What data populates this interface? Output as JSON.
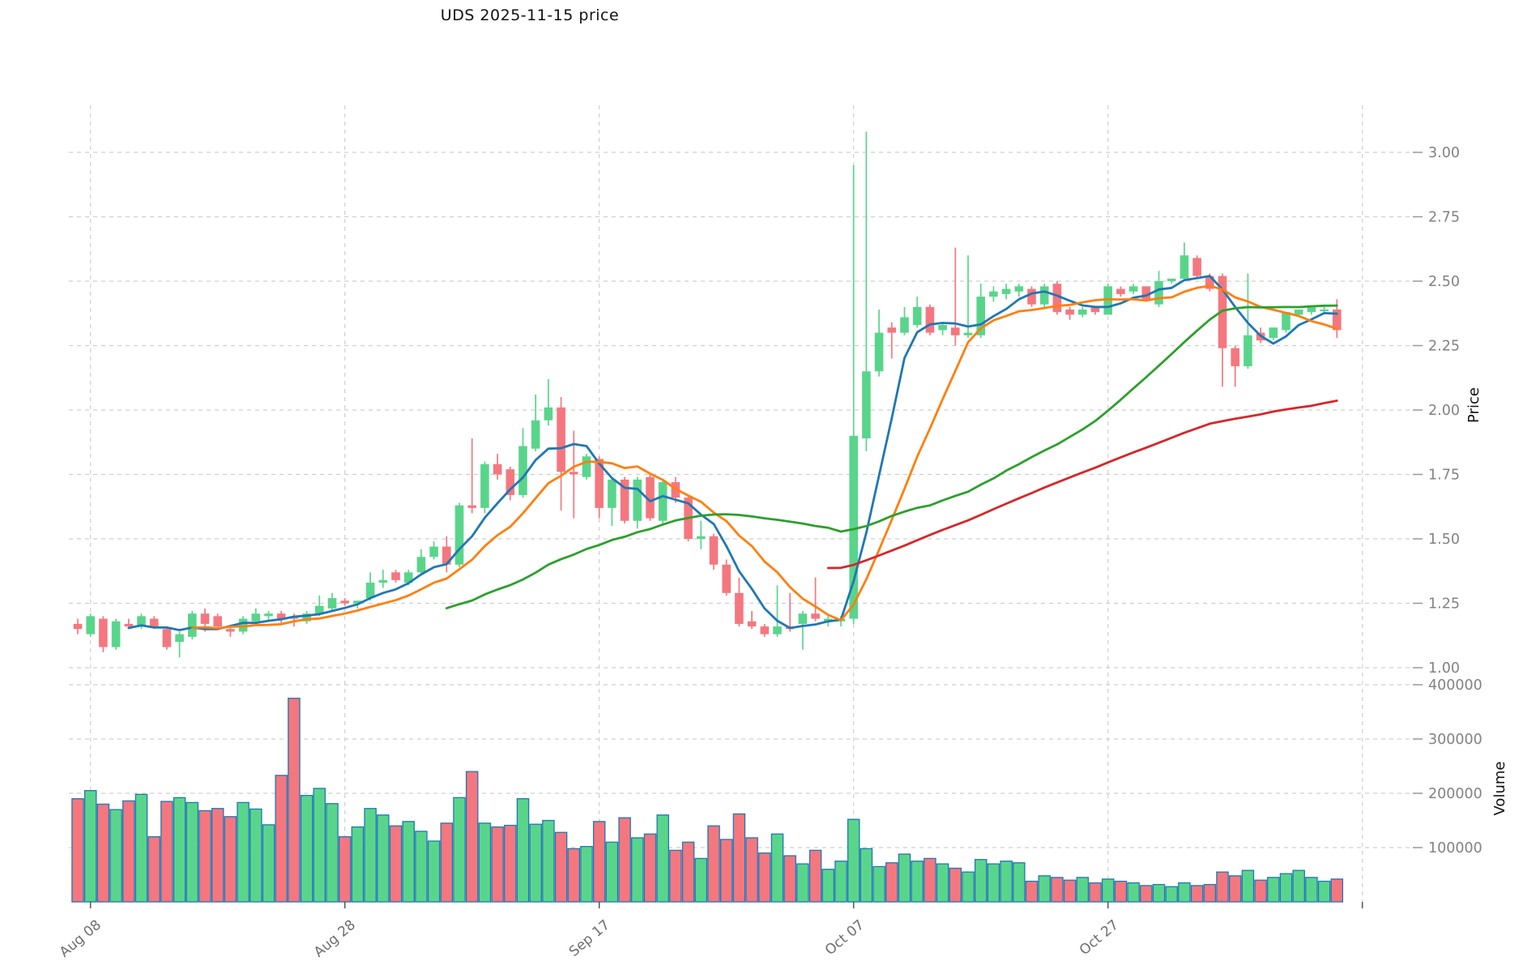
{
  "title": "UDS  2025-11-15  price",
  "colors": {
    "up": "#59D58B",
    "down": "#F4777F",
    "volume_edge": "#1F77B4",
    "ma5": "#1F77B4",
    "ma10": "#FF7F0E",
    "ma30": "#2CA02C",
    "ma60": "#D62728",
    "grid": "#CFCFCF",
    "tick_text": "#828282",
    "xtick_text": "#6E6E6E"
  },
  "chart_data": {
    "type": "candlestick",
    "title": "UDS  2025-11-15  price",
    "legend_position": "none",
    "grid": "dashed",
    "price_axis": {
      "label": "Price",
      "side": "right",
      "tick_labels": [
        "1.00",
        "1.25",
        "1.50",
        "1.75",
        "2.00",
        "2.25",
        "2.50",
        "2.75",
        "3.00"
      ],
      "tick_values": [
        1.0,
        1.25,
        1.5,
        1.75,
        2.0,
        2.25,
        2.5,
        2.75,
        3.0
      ],
      "range": [
        0.97,
        3.21
      ]
    },
    "volume_axis": {
      "label": "Volume",
      "side": "right",
      "tick_labels": [
        "100000",
        "200000",
        "300000",
        "400000"
      ],
      "tick_values": [
        100000,
        200000,
        300000,
        400000
      ],
      "range": [
        0,
        418000
      ]
    },
    "x_axis": {
      "tick_labels": [
        "Aug 08",
        "Aug 28",
        "Sep 17",
        "Oct 07",
        "Oct 27",
        ""
      ],
      "tick_indices": [
        1,
        21,
        41,
        61,
        81,
        101
      ]
    },
    "moving_averages": [
      {
        "name": "SMA5",
        "window": 5,
        "color_key": "ma5"
      },
      {
        "name": "SMA10",
        "window": 10,
        "color_key": "ma10"
      },
      {
        "name": "SMA30",
        "window": 30,
        "color_key": "ma30"
      },
      {
        "name": "SMA60",
        "window": 60,
        "color_key": "ma60"
      }
    ],
    "candles": [
      [
        1.17,
        1.19,
        1.13,
        1.15
      ],
      [
        1.13,
        1.21,
        1.12,
        1.2
      ],
      [
        1.19,
        1.2,
        1.06,
        1.08
      ],
      [
        1.08,
        1.19,
        1.07,
        1.18
      ],
      [
        1.17,
        1.19,
        1.15,
        1.16
      ],
      [
        1.16,
        1.21,
        1.15,
        1.2
      ],
      [
        1.19,
        1.2,
        1.15,
        1.16
      ],
      [
        1.15,
        1.16,
        1.07,
        1.08
      ],
      [
        1.1,
        1.14,
        1.04,
        1.13
      ],
      [
        1.12,
        1.22,
        1.11,
        1.21
      ],
      [
        1.21,
        1.23,
        1.14,
        1.17
      ],
      [
        1.2,
        1.21,
        1.15,
        1.16
      ],
      [
        1.15,
        1.16,
        1.12,
        1.14
      ],
      [
        1.14,
        1.2,
        1.13,
        1.19
      ],
      [
        1.18,
        1.23,
        1.17,
        1.21
      ],
      [
        1.2,
        1.22,
        1.18,
        1.21
      ],
      [
        1.21,
        1.22,
        1.17,
        1.19
      ],
      [
        1.2,
        1.21,
        1.16,
        1.19
      ],
      [
        1.18,
        1.22,
        1.17,
        1.21
      ],
      [
        1.21,
        1.28,
        1.2,
        1.24
      ],
      [
        1.23,
        1.29,
        1.22,
        1.27
      ],
      [
        1.26,
        1.27,
        1.24,
        1.25
      ],
      [
        1.25,
        1.26,
        1.23,
        1.26
      ],
      [
        1.27,
        1.37,
        1.26,
        1.33
      ],
      [
        1.33,
        1.38,
        1.31,
        1.34
      ],
      [
        1.37,
        1.38,
        1.33,
        1.34
      ],
      [
        1.33,
        1.38,
        1.32,
        1.37
      ],
      [
        1.37,
        1.46,
        1.36,
        1.43
      ],
      [
        1.43,
        1.49,
        1.42,
        1.47
      ],
      [
        1.47,
        1.51,
        1.37,
        1.4
      ],
      [
        1.4,
        1.64,
        1.39,
        1.63
      ],
      [
        1.63,
        1.89,
        1.6,
        1.62
      ],
      [
        1.62,
        1.8,
        1.6,
        1.79
      ],
      [
        1.79,
        1.83,
        1.73,
        1.75
      ],
      [
        1.77,
        1.78,
        1.65,
        1.67
      ],
      [
        1.67,
        1.93,
        1.66,
        1.86
      ],
      [
        1.85,
        2.06,
        1.84,
        1.96
      ],
      [
        1.96,
        2.12,
        1.94,
        2.01
      ],
      [
        2.01,
        2.05,
        1.61,
        1.76
      ],
      [
        1.76,
        1.92,
        1.58,
        1.75
      ],
      [
        1.74,
        1.83,
        1.73,
        1.82
      ],
      [
        1.81,
        1.82,
        1.58,
        1.62
      ],
      [
        1.62,
        1.74,
        1.55,
        1.73
      ],
      [
        1.73,
        1.74,
        1.56,
        1.57
      ],
      [
        1.57,
        1.74,
        1.54,
        1.73
      ],
      [
        1.74,
        1.75,
        1.57,
        1.58
      ],
      [
        1.57,
        1.73,
        1.56,
        1.72
      ],
      [
        1.72,
        1.74,
        1.64,
        1.66
      ],
      [
        1.66,
        1.67,
        1.49,
        1.5
      ],
      [
        1.5,
        1.57,
        1.46,
        1.51
      ],
      [
        1.51,
        1.52,
        1.38,
        1.4
      ],
      [
        1.4,
        1.42,
        1.28,
        1.29
      ],
      [
        1.29,
        1.35,
        1.16,
        1.17
      ],
      [
        1.18,
        1.22,
        1.15,
        1.16
      ],
      [
        1.16,
        1.17,
        1.12,
        1.13
      ],
      [
        1.13,
        1.32,
        1.12,
        1.16
      ],
      [
        1.16,
        1.29,
        1.14,
        1.15
      ],
      [
        1.17,
        1.22,
        1.07,
        1.21
      ],
      [
        1.21,
        1.35,
        1.18,
        1.19
      ],
      [
        1.18,
        1.2,
        1.16,
        1.19
      ],
      [
        1.18,
        1.2,
        1.16,
        1.19
      ],
      [
        1.19,
        2.95,
        1.17,
        1.9
      ],
      [
        1.89,
        3.08,
        1.84,
        2.15
      ],
      [
        2.15,
        2.39,
        2.13,
        2.3
      ],
      [
        2.32,
        2.34,
        2.2,
        2.3
      ],
      [
        2.3,
        2.4,
        2.29,
        2.36
      ],
      [
        2.33,
        2.44,
        2.32,
        2.4
      ],
      [
        2.4,
        2.41,
        2.29,
        2.3
      ],
      [
        2.31,
        2.34,
        2.29,
        2.33
      ],
      [
        2.32,
        2.63,
        2.25,
        2.29
      ],
      [
        2.29,
        2.6,
        2.28,
        2.3
      ],
      [
        2.29,
        2.49,
        2.28,
        2.44
      ],
      [
        2.44,
        2.48,
        2.42,
        2.46
      ],
      [
        2.45,
        2.49,
        2.43,
        2.47
      ],
      [
        2.46,
        2.49,
        2.44,
        2.48
      ],
      [
        2.47,
        2.48,
        2.4,
        2.41
      ],
      [
        2.41,
        2.49,
        2.4,
        2.48
      ],
      [
        2.49,
        2.5,
        2.37,
        2.38
      ],
      [
        2.39,
        2.4,
        2.35,
        2.37
      ],
      [
        2.37,
        2.4,
        2.36,
        2.39
      ],
      [
        2.4,
        2.4,
        2.37,
        2.38
      ],
      [
        2.37,
        2.49,
        2.37,
        2.48
      ],
      [
        2.47,
        2.48,
        2.44,
        2.45
      ],
      [
        2.46,
        2.49,
        2.45,
        2.48
      ],
      [
        2.48,
        2.48,
        2.42,
        2.43
      ],
      [
        2.41,
        2.54,
        2.4,
        2.5
      ],
      [
        2.5,
        2.51,
        2.49,
        2.51
      ],
      [
        2.51,
        2.65,
        2.5,
        2.6
      ],
      [
        2.59,
        2.6,
        2.51,
        2.52
      ],
      [
        2.52,
        2.53,
        2.46,
        2.47
      ],
      [
        2.52,
        2.53,
        2.09,
        2.24
      ],
      [
        2.24,
        2.25,
        2.09,
        2.17
      ],
      [
        2.17,
        2.53,
        2.16,
        2.29
      ],
      [
        2.3,
        2.32,
        2.26,
        2.27
      ],
      [
        2.28,
        2.32,
        2.27,
        2.32
      ],
      [
        2.31,
        2.38,
        2.3,
        2.38
      ],
      [
        2.37,
        2.39,
        2.36,
        2.39
      ],
      [
        2.38,
        2.4,
        2.37,
        2.4
      ],
      [
        2.39,
        2.4,
        2.38,
        2.39
      ],
      [
        2.39,
        2.43,
        2.28,
        2.31
      ]
    ],
    "volumes": [
      190000,
      205000,
      180000,
      170000,
      186000,
      198000,
      120000,
      185000,
      192000,
      183000,
      168000,
      172000,
      157000,
      183000,
      171000,
      142000,
      233000,
      375000,
      196000,
      209000,
      181000,
      120000,
      138000,
      172000,
      160000,
      140000,
      148000,
      130000,
      112000,
      145000,
      192000,
      240000,
      145000,
      138000,
      141000,
      190000,
      143000,
      150000,
      128000,
      98000,
      102000,
      148000,
      110000,
      155000,
      118000,
      125000,
      160000,
      95000,
      110000,
      80000,
      140000,
      115000,
      162000,
      118000,
      90000,
      125000,
      85000,
      70000,
      95000,
      60000,
      75000,
      152000,
      98000,
      65000,
      72000,
      88000,
      75000,
      80000,
      70000,
      62000,
      55000,
      78000,
      70000,
      75000,
      72000,
      38000,
      48000,
      45000,
      40000,
      45000,
      35000,
      42000,
      38000,
      35000,
      30000,
      32000,
      28000,
      35000,
      30000,
      32000,
      55000,
      48000,
      58000,
      40000,
      45000,
      52000,
      58000,
      45000,
      38000,
      42000
    ]
  }
}
